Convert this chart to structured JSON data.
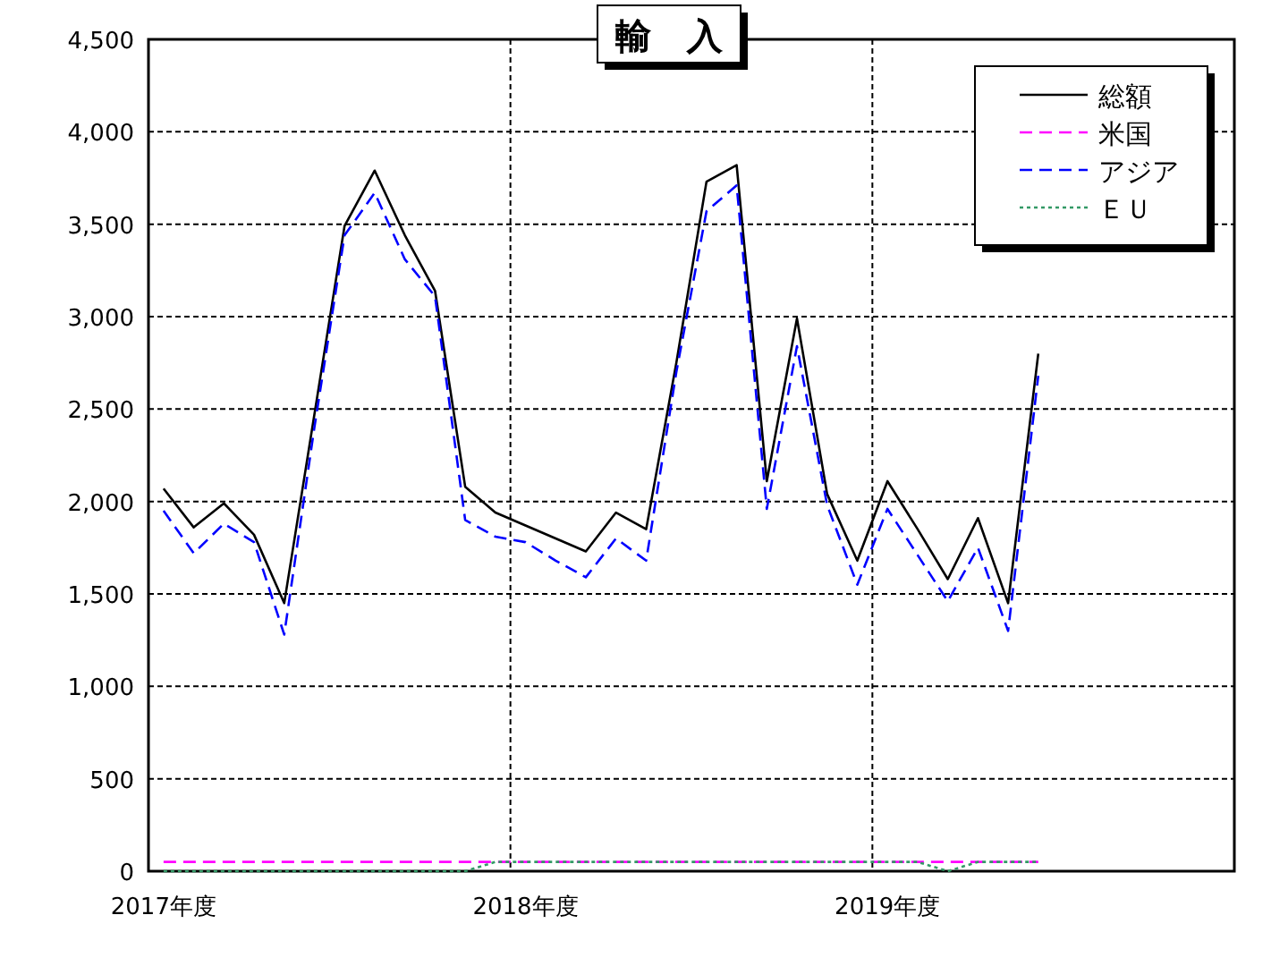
{
  "chart_data": {
    "type": "line",
    "title": "輸　入",
    "categories": [
      "2017年度",
      null,
      null,
      null,
      null,
      null,
      null,
      null,
      null,
      null,
      null,
      null,
      "2018年度",
      null,
      null,
      null,
      null,
      null,
      null,
      null,
      null,
      null,
      null,
      null,
      "2019年度",
      null,
      null,
      null,
      null,
      null,
      null,
      null,
      null,
      null,
      null,
      null
    ],
    "series": [
      {
        "name": "総額",
        "color": "#000000",
        "line_style": "solid",
        "values": [
          2070,
          1860,
          1990,
          1820,
          1450,
          2470,
          3490,
          3790,
          3440,
          3140,
          2080,
          1940,
          1870,
          1800,
          1730,
          1940,
          1850,
          2750,
          3730,
          3820,
          2110,
          2990,
          2040,
          1680,
          2110,
          1850,
          1580,
          1910,
          1450,
          2800,
          null,
          null,
          null,
          null,
          null,
          null
        ]
      },
      {
        "name": "米国",
        "color": "#ff00ff",
        "line_style": "dashed",
        "values": [
          50,
          50,
          50,
          50,
          50,
          50,
          50,
          50,
          50,
          50,
          50,
          50,
          50,
          50,
          50,
          50,
          50,
          50,
          50,
          50,
          50,
          50,
          50,
          50,
          50,
          50,
          50,
          50,
          50,
          50,
          null,
          null,
          null,
          null,
          null,
          null
        ]
      },
      {
        "name": "アジア",
        "color": "#0000ff",
        "line_style": "dashed",
        "values": [
          1950,
          1720,
          1880,
          1780,
          1280,
          2400,
          3440,
          3670,
          3310,
          3110,
          1900,
          1810,
          1780,
          1680,
          1590,
          1800,
          1680,
          2700,
          3570,
          3710,
          1960,
          2840,
          1980,
          1550,
          1960,
          1710,
          1460,
          1750,
          1300,
          2680,
          null,
          null,
          null,
          null,
          null,
          null
        ]
      },
      {
        "name": "ＥＵ",
        "color": "#339966",
        "line_style": "dotted",
        "values": [
          0,
          0,
          0,
          0,
          0,
          0,
          0,
          0,
          0,
          0,
          0,
          50,
          50,
          50,
          50,
          50,
          50,
          50,
          50,
          50,
          50,
          50,
          50,
          50,
          50,
          50,
          0,
          50,
          50,
          50,
          null,
          null,
          null,
          null,
          null,
          null
        ]
      }
    ],
    "ylim": [
      0,
      4500
    ],
    "yticks": [
      {
        "value": 0,
        "label": "0"
      },
      {
        "value": 500,
        "label": "500"
      },
      {
        "value": 1000,
        "label": "1,000"
      },
      {
        "value": 1500,
        "label": "1,500"
      },
      {
        "value": 2000,
        "label": "2,000"
      },
      {
        "value": 2500,
        "label": "2,500"
      },
      {
        "value": 3000,
        "label": "3,000"
      },
      {
        "value": 3500,
        "label": "3,500"
      },
      {
        "value": 4000,
        "label": "4,000"
      },
      {
        "value": 4500,
        "label": "4,500"
      }
    ],
    "grid": true,
    "legend": "top right",
    "marker": "none"
  }
}
